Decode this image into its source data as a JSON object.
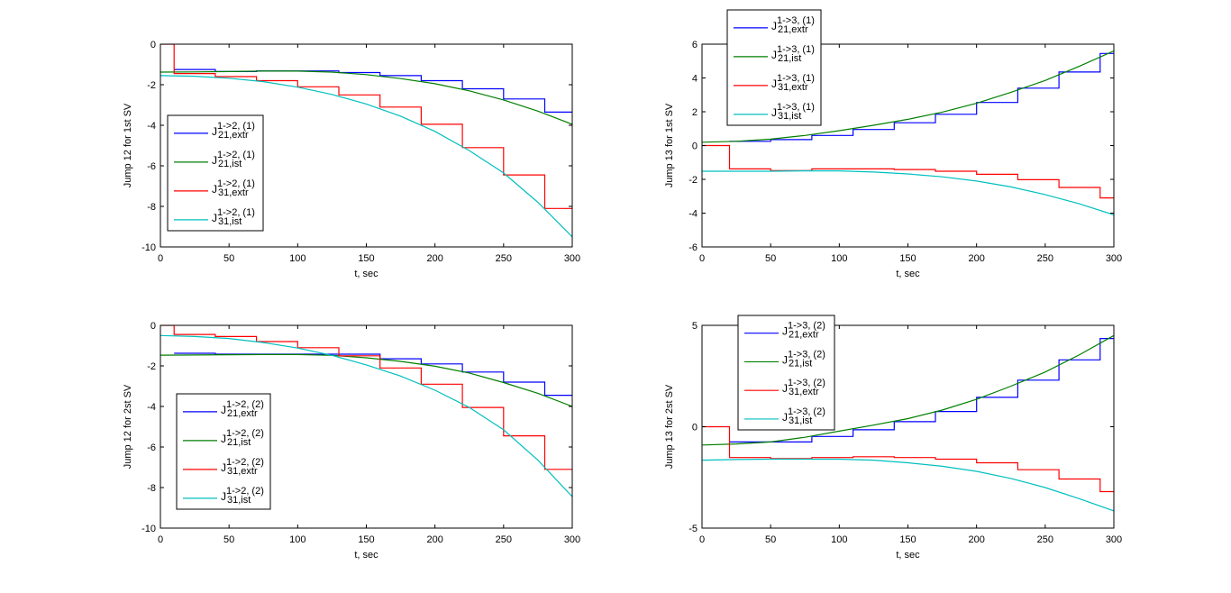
{
  "figure": {
    "background": "#ffffff",
    "colors": {
      "J21_extr": "#0000ff",
      "J21_ist": "#007f00",
      "J31_extr": "#ff0000",
      "J31_ist": "#00bfbf"
    }
  },
  "chart_data": [
    {
      "id": "top-left",
      "type": "line",
      "title": "",
      "xlabel": "t, sec",
      "ylabel": "Jump 12 for 1st SV",
      "xlim": [
        0,
        300
      ],
      "ylim": [
        -10,
        0
      ],
      "xticks": [
        0,
        50,
        100,
        150,
        200,
        250,
        300
      ],
      "xtick_labels": [
        "0",
        "50",
        "100",
        "150",
        "200",
        "250",
        "300"
      ],
      "yticks": [
        -10,
        -8,
        -6,
        -4,
        -2,
        0
      ],
      "ytick_labels": [
        "-10",
        "-8",
        "-6",
        "-4",
        "-2",
        "0"
      ],
      "grid": false,
      "legend_position": "center-left",
      "series": [
        {
          "name": "J21,extr",
          "sup": "1->2, (1)",
          "sub": "21,extr",
          "color": "#0000ff",
          "style": "step",
          "x": [
            10,
            40,
            70,
            100,
            130,
            160,
            190,
            220,
            250,
            280,
            300
          ],
          "y": [
            -1.25,
            -1.35,
            -1.32,
            -1.32,
            -1.4,
            -1.55,
            -1.8,
            -2.2,
            -2.7,
            -3.35,
            -3.35
          ]
        },
        {
          "name": "J21,ist",
          "sup": "1->2, (1)",
          "sub": "21,ist",
          "color": "#007f00",
          "style": "line",
          "x": [
            0,
            25,
            50,
            75,
            100,
            125,
            150,
            175,
            200,
            225,
            250,
            275,
            300
          ],
          "y": [
            -1.38,
            -1.37,
            -1.35,
            -1.33,
            -1.33,
            -1.38,
            -1.5,
            -1.7,
            -1.95,
            -2.3,
            -2.75,
            -3.3,
            -3.95
          ]
        },
        {
          "name": "J31,extr",
          "sup": "1->2, (1)",
          "sub": "31,extr",
          "color": "#ff0000",
          "style": "step",
          "x": [
            0,
            10,
            40,
            70,
            100,
            130,
            160,
            190,
            220,
            250,
            280,
            300
          ],
          "y": [
            0,
            -1.45,
            -1.6,
            -1.8,
            -2.1,
            -2.5,
            -3.1,
            -3.95,
            -5.1,
            -6.45,
            -8.1,
            -8.1
          ]
        },
        {
          "name": "J31,ist",
          "sup": "1->2, (1)",
          "sub": "31,ist",
          "color": "#00bfbf",
          "style": "line",
          "x": [
            0,
            25,
            50,
            75,
            100,
            125,
            150,
            175,
            200,
            225,
            250,
            275,
            300
          ],
          "y": [
            -1.55,
            -1.58,
            -1.68,
            -1.85,
            -2.12,
            -2.48,
            -2.95,
            -3.55,
            -4.3,
            -5.25,
            -6.35,
            -7.8,
            -9.5
          ]
        }
      ]
    },
    {
      "id": "top-right",
      "type": "line",
      "title": "",
      "xlabel": "t, sec",
      "ylabel": "Jump 13 for 1st SV",
      "xlim": [
        0,
        300
      ],
      "ylim": [
        -6,
        6
      ],
      "xticks": [
        0,
        50,
        100,
        150,
        200,
        250,
        300
      ],
      "xtick_labels": [
        "0",
        "50",
        "100",
        "150",
        "200",
        "250",
        "300"
      ],
      "yticks": [
        -6,
        -4,
        -2,
        0,
        2,
        4,
        6
      ],
      "ytick_labels": [
        "-6",
        "-4",
        "-2",
        "0",
        "2",
        "4",
        "6"
      ],
      "grid": false,
      "legend_position": "top-left",
      "series": [
        {
          "name": "J21,extr",
          "sup": "1->3, (1)",
          "sub": "21,extr",
          "color": "#0000ff",
          "style": "step",
          "x": [
            20,
            50,
            80,
            110,
            140,
            170,
            200,
            230,
            260,
            290,
            300
          ],
          "y": [
            0.25,
            0.35,
            0.6,
            0.95,
            1.35,
            1.85,
            2.55,
            3.4,
            4.35,
            5.45,
            5.45
          ]
        },
        {
          "name": "J21,ist",
          "sup": "1->3, (1)",
          "sub": "21,ist",
          "color": "#007f00",
          "style": "line",
          "x": [
            0,
            25,
            50,
            75,
            100,
            125,
            150,
            175,
            200,
            225,
            250,
            275,
            300
          ],
          "y": [
            0.2,
            0.25,
            0.38,
            0.6,
            0.88,
            1.2,
            1.55,
            1.98,
            2.5,
            3.15,
            3.85,
            4.7,
            5.6
          ]
        },
        {
          "name": "J31,extr",
          "sup": "1->3, (1)",
          "sub": "31,extr",
          "color": "#ff0000",
          "style": "step",
          "x": [
            0,
            20,
            50,
            80,
            110,
            140,
            170,
            200,
            230,
            260,
            290,
            300
          ],
          "y": [
            0,
            -1.38,
            -1.48,
            -1.38,
            -1.38,
            -1.42,
            -1.52,
            -1.7,
            -2.02,
            -2.48,
            -3.1,
            -3.1
          ]
        },
        {
          "name": "J31,ist",
          "sup": "1->3, (1)",
          "sub": "31,ist",
          "color": "#00bfbf",
          "style": "line",
          "x": [
            0,
            25,
            50,
            75,
            100,
            125,
            150,
            175,
            200,
            225,
            250,
            275,
            300
          ],
          "y": [
            -1.52,
            -1.52,
            -1.52,
            -1.5,
            -1.5,
            -1.57,
            -1.68,
            -1.85,
            -2.1,
            -2.45,
            -2.9,
            -3.45,
            -4.1
          ]
        }
      ]
    },
    {
      "id": "bottom-left",
      "type": "line",
      "title": "",
      "xlabel": "t, sec",
      "ylabel": "Jump 12 for 2st SV",
      "xlim": [
        0,
        300
      ],
      "ylim": [
        -10,
        0
      ],
      "xticks": [
        0,
        50,
        100,
        150,
        200,
        250,
        300
      ],
      "xtick_labels": [
        "0",
        "50",
        "100",
        "150",
        "200",
        "250",
        "300"
      ],
      "yticks": [
        -10,
        -8,
        -6,
        -4,
        -2,
        0
      ],
      "ytick_labels": [
        "-10",
        "-8",
        "-6",
        "-4",
        "-2",
        "0"
      ],
      "grid": false,
      "legend_position": "center-left",
      "series": [
        {
          "name": "J21,extr",
          "sup": "1->2, (2)",
          "sub": "21,extr",
          "color": "#0000ff",
          "style": "step",
          "x": [
            10,
            40,
            70,
            100,
            130,
            160,
            190,
            220,
            250,
            280,
            300
          ],
          "y": [
            -1.38,
            -1.42,
            -1.42,
            -1.42,
            -1.42,
            -1.65,
            -1.9,
            -2.3,
            -2.8,
            -3.45,
            -3.45
          ]
        },
        {
          "name": "J21,ist",
          "sup": "1->2, (2)",
          "sub": "21,ist",
          "color": "#007f00",
          "style": "line",
          "x": [
            0,
            25,
            50,
            75,
            100,
            125,
            150,
            175,
            200,
            225,
            250,
            275,
            300
          ],
          "y": [
            -1.47,
            -1.46,
            -1.45,
            -1.44,
            -1.44,
            -1.48,
            -1.6,
            -1.78,
            -2.02,
            -2.35,
            -2.82,
            -3.35,
            -4.0
          ]
        },
        {
          "name": "J31,extr",
          "sup": "1->2, (2)",
          "sub": "31,extr",
          "color": "#ff0000",
          "style": "step",
          "x": [
            0,
            10,
            40,
            70,
            100,
            130,
            160,
            190,
            220,
            250,
            280,
            300
          ],
          "y": [
            0,
            -0.45,
            -0.55,
            -0.8,
            -1.1,
            -1.5,
            -2.1,
            -2.9,
            -4.05,
            -5.45,
            -7.1,
            -7.1
          ]
        },
        {
          "name": "J31,ist",
          "sup": "1->2, (2)",
          "sub": "31,ist",
          "color": "#00bfbf",
          "style": "line",
          "x": [
            0,
            25,
            50,
            75,
            100,
            125,
            150,
            175,
            200,
            225,
            250,
            275,
            300
          ],
          "y": [
            -0.5,
            -0.55,
            -0.65,
            -0.85,
            -1.12,
            -1.48,
            -1.95,
            -2.5,
            -3.2,
            -4.05,
            -5.15,
            -6.65,
            -8.45
          ]
        }
      ]
    },
    {
      "id": "bottom-right",
      "type": "line",
      "title": "",
      "xlabel": "t, sec",
      "ylabel": "Jump 13 for 2st SV",
      "xlim": [
        0,
        300
      ],
      "ylim": [
        -5,
        5
      ],
      "xticks": [
        0,
        50,
        100,
        150,
        200,
        250,
        300
      ],
      "xtick_labels": [
        "0",
        "50",
        "100",
        "150",
        "200",
        "250",
        "300"
      ],
      "yticks": [
        -5,
        0,
        5
      ],
      "ytick_labels": [
        "-5",
        "0",
        "5"
      ],
      "grid": false,
      "legend_position": "top-left",
      "series": [
        {
          "name": "J21,extr",
          "sup": "1->3, (2)",
          "sub": "21,extr",
          "color": "#0000ff",
          "style": "step",
          "x": [
            20,
            50,
            80,
            110,
            140,
            170,
            200,
            230,
            260,
            290,
            300
          ],
          "y": [
            -0.75,
            -0.75,
            -0.48,
            -0.15,
            0.25,
            0.75,
            1.45,
            2.3,
            3.3,
            4.35,
            4.35
          ]
        },
        {
          "name": "J21,ist",
          "sup": "1->3, (2)",
          "sub": "21,ist",
          "color": "#007f00",
          "style": "line",
          "x": [
            0,
            25,
            50,
            75,
            100,
            125,
            150,
            175,
            200,
            225,
            250,
            275,
            300
          ],
          "y": [
            -0.9,
            -0.85,
            -0.75,
            -0.52,
            -0.22,
            0.08,
            0.4,
            0.82,
            1.35,
            2.0,
            2.7,
            3.55,
            4.5
          ]
        },
        {
          "name": "J31,extr",
          "sup": "1->3, (2)",
          "sub": "31,extr",
          "color": "#ff0000",
          "style": "step",
          "x": [
            0,
            20,
            50,
            80,
            110,
            140,
            170,
            200,
            230,
            260,
            290,
            300
          ],
          "y": [
            0,
            -1.52,
            -1.57,
            -1.52,
            -1.48,
            -1.52,
            -1.6,
            -1.78,
            -2.12,
            -2.58,
            -3.2,
            -3.2
          ]
        },
        {
          "name": "J31,ist",
          "sup": "1->3, (2)",
          "sub": "31,ist",
          "color": "#00bfbf",
          "style": "line",
          "x": [
            0,
            25,
            50,
            75,
            100,
            125,
            150,
            175,
            200,
            225,
            250,
            275,
            300
          ],
          "y": [
            -1.65,
            -1.62,
            -1.6,
            -1.6,
            -1.6,
            -1.65,
            -1.78,
            -1.95,
            -2.2,
            -2.55,
            -3.0,
            -3.55,
            -4.15
          ]
        }
      ]
    }
  ]
}
